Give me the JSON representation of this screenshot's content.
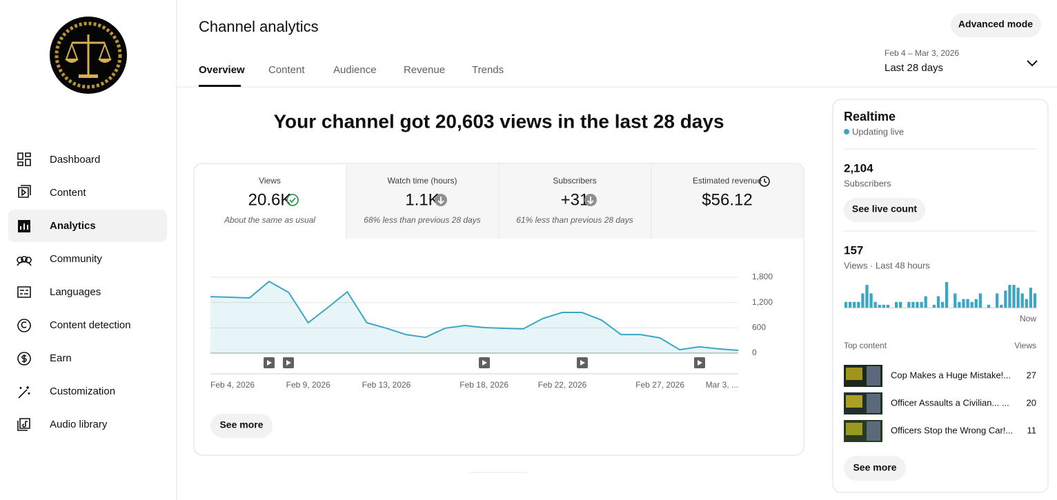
{
  "sidebar": {
    "items": [
      "Dashboard",
      "Content",
      "Analytics",
      "Community",
      "Languages",
      "Content detection",
      "Earn",
      "Customization",
      "Audio library"
    ]
  },
  "header": {
    "title": "Channel analytics",
    "tabs": [
      "Overview",
      "Content",
      "Audience",
      "Revenue",
      "Trends"
    ],
    "advanced_mode": "Advanced mode",
    "date_range": "Feb 4 – Mar 3, 2026",
    "period": "Last 28 days"
  },
  "headline": "Your channel got 20,603 views in the last 28 days",
  "metrics": [
    {
      "label": "Views",
      "value": "20.6K",
      "note": "About the same as usual"
    },
    {
      "label": "Watch time (hours)",
      "value": "1.1K",
      "note": "68% less than previous 28 days"
    },
    {
      "label": "Subscribers",
      "value": "+31",
      "note": "61% less than previous 28 days"
    },
    {
      "label": "Estimated revenue",
      "value": "$56.12"
    }
  ],
  "see_more": "See more",
  "chart_data": [
    {
      "type": "line",
      "color": "#3aa6c4",
      "fill": true,
      "grid": true,
      "categories": [
        "Feb 4, 2026",
        null,
        null,
        null,
        null,
        "Feb 9, 2026",
        null,
        null,
        null,
        "Feb 13, 2026",
        null,
        null,
        null,
        null,
        "Feb 18, 2026",
        null,
        null,
        null,
        "Feb 22, 2026",
        null,
        null,
        null,
        null,
        "Feb 27, 2026",
        null,
        null,
        null,
        "Mar 3, ..."
      ],
      "values": [
        1340,
        1325,
        1310,
        1700,
        1440,
        720,
        1080,
        1455,
        720,
        590,
        440,
        375,
        590,
        655,
        605,
        590,
        575,
        820,
        965,
        965,
        785,
        440,
        440,
        360,
        80,
        150,
        100,
        65
      ],
      "ylim": [
        0,
        1800
      ],
      "yticks": [
        0,
        600,
        {
          "value": 1200,
          "label": "1,200"
        },
        {
          "value": 1800,
          "label": "1,800"
        }
      ]
    },
    {
      "type": "bar",
      "color": "#3aa6c4",
      "xlabel": "Now",
      "values": [
        2,
        2,
        2,
        2,
        5,
        8,
        5,
        2,
        1,
        1,
        1,
        0,
        2,
        2,
        0,
        2,
        2,
        2,
        2,
        4,
        0,
        1,
        4,
        2,
        9,
        0,
        5,
        2,
        3,
        3,
        2,
        3,
        5,
        0,
        1,
        0,
        5,
        1,
        6,
        8,
        8,
        7,
        5,
        3,
        7,
        5
      ]
    }
  ],
  "realtime": {
    "title": "Realtime",
    "status": "Updating live",
    "subscribers": "2,104",
    "subscribers_label": "Subscribers",
    "live_count_button": "See live count",
    "views": "157",
    "views_label": "Views · Last 48 hours",
    "top_content_label": "Top content",
    "views_column": "Views",
    "top_content": [
      {
        "title": "Cop Makes a Huge Mistake!...",
        "views": "27"
      },
      {
        "title": "Officer Assaults a Civilian... ...",
        "views": "20"
      },
      {
        "title": "Officers Stop the Wrong Car!...",
        "views": "11"
      }
    ],
    "see_more": "See more"
  }
}
